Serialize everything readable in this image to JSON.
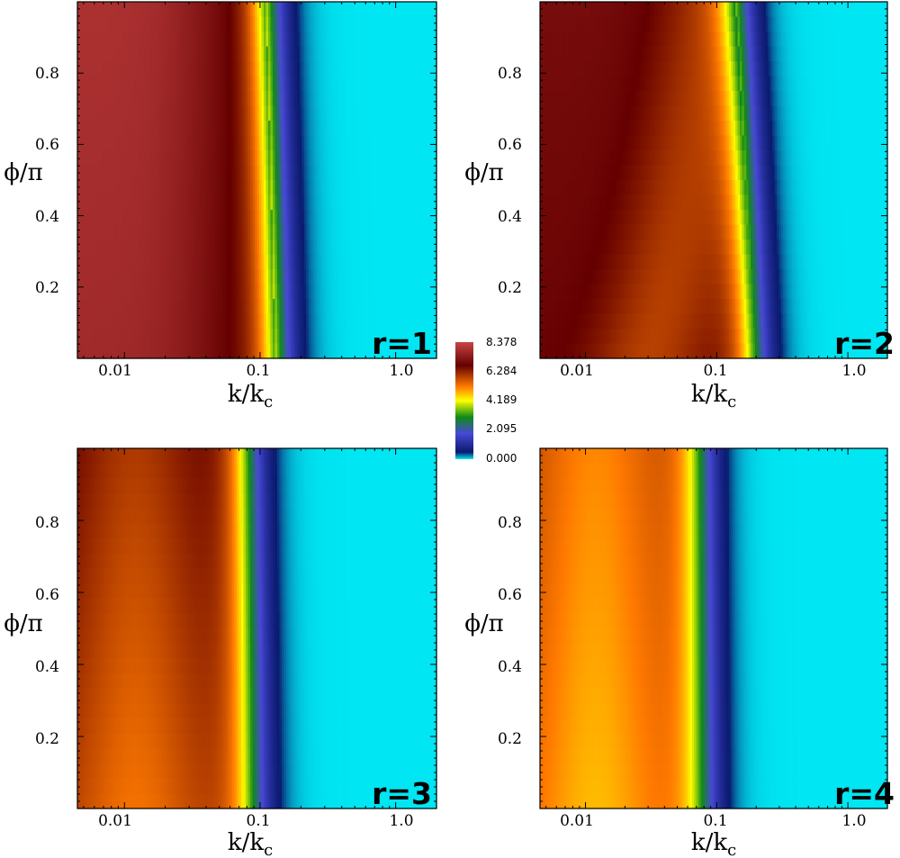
{
  "chart_data": {
    "type": "heatmap",
    "colorbar": {
      "ticks": [
        "8.378",
        "6.284",
        "4.189",
        "2.095",
        "0.000"
      ],
      "range": [
        0,
        8.378
      ],
      "colormap": [
        {
          "v": 0.0,
          "color": "#00e6f2"
        },
        {
          "v": 0.06,
          "color": "#0a1a6e"
        },
        {
          "v": 0.22,
          "color": "#4848d6"
        },
        {
          "v": 0.36,
          "color": "#0f8c16"
        },
        {
          "v": 0.5,
          "color": "#ffff00"
        },
        {
          "v": 0.62,
          "color": "#ff7a00"
        },
        {
          "v": 0.8,
          "color": "#650000"
        },
        {
          "v": 1.0,
          "color": "#c84545"
        }
      ]
    },
    "x_axis": {
      "scale": "log",
      "range": [
        0.0045,
        2.0
      ],
      "ticks": [
        "0.01",
        "0.1",
        "1.0"
      ],
      "tick_values": [
        0.01,
        0.1,
        1.0
      ]
    },
    "y_axis": {
      "scale": "linear",
      "range": [
        0,
        1
      ],
      "ticks": [
        "0.8",
        "0.6",
        "0.4",
        "0.2"
      ],
      "tick_values": [
        0.8,
        0.6,
        0.4,
        0.2
      ]
    },
    "xlabel_main": "k/k",
    "xlabel_sub": "c",
    "ylabel": "ϕ/π",
    "panels": [
      {
        "label": "r=1",
        "plateau_phi0": 7.7,
        "plateau_phi1": 7.9,
        "transition_kc": [
          0.13,
          0.11
        ],
        "trough_kc": [
          0.075,
          0.068
        ]
      },
      {
        "label": "r=2",
        "plateau_phi0": 6.8,
        "plateau_phi1": 7.0,
        "transition_kc": [
          0.19,
          0.14
        ],
        "trough_kc": [
          0.03,
          0.09
        ]
      },
      {
        "label": "r=3",
        "plateau_phi0": 6.2,
        "plateau_phi1": 6.9,
        "transition_kc": [
          0.088,
          0.079
        ],
        "trough_kc": [
          0.012,
          0.012
        ]
      },
      {
        "label": "r=4",
        "plateau_phi0": 5.6,
        "plateau_phi1": 6.0,
        "transition_kc": [
          0.08,
          0.075
        ],
        "trough_kc": [
          0.012,
          0.012
        ]
      }
    ]
  }
}
